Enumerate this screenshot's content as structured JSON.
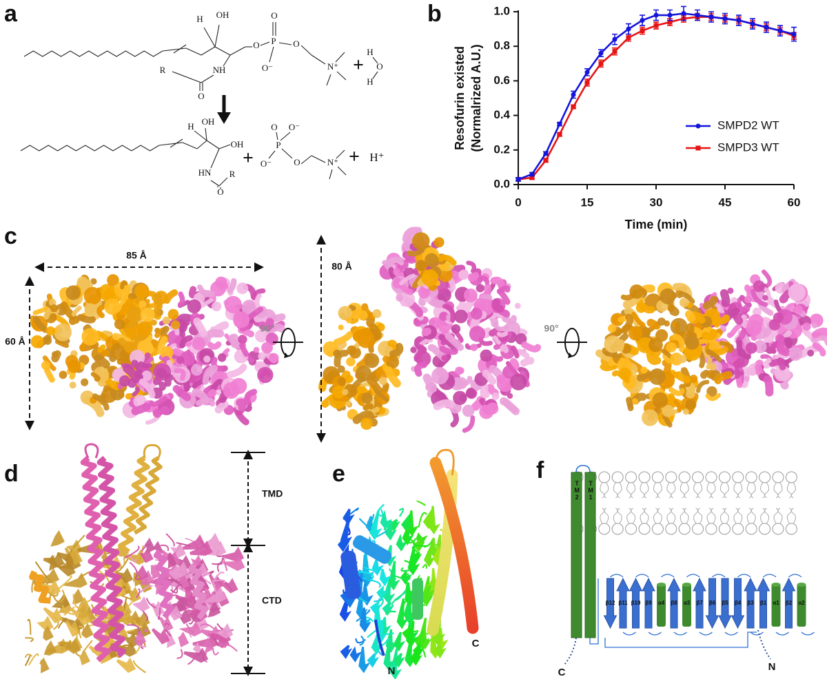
{
  "panel_labels": [
    "a",
    "b",
    "c",
    "d",
    "e",
    "f"
  ],
  "panel_a": {
    "reactant_labels": [
      "H",
      "OH",
      "NH",
      "R",
      "O",
      "O",
      "P",
      "O",
      "O⁻",
      "O",
      "N⁺",
      "+",
      "H",
      "O",
      "H"
    ],
    "product_labels": [
      "H",
      "OH",
      "OH",
      "+",
      "HN",
      "R",
      "O",
      "O",
      "O⁻",
      "P",
      "O⁻",
      "O",
      "N⁺",
      "+",
      "H⁺"
    ]
  },
  "chart_data": {
    "type": "line",
    "xlabel": "Time (min)",
    "ylabel": [
      "Resofurin existed",
      "(Normalrized A.U.)"
    ],
    "x": [
      0,
      3,
      6,
      9,
      12,
      15,
      18,
      21,
      24,
      27,
      30,
      33,
      36,
      39,
      42,
      45,
      48,
      51,
      54,
      57,
      60
    ],
    "series": [
      {
        "name": "SMPD2 WT",
        "color": "#1414dc",
        "marker": "circle",
        "values": [
          0.03,
          0.06,
          0.18,
          0.35,
          0.52,
          0.65,
          0.76,
          0.84,
          0.9,
          0.95,
          0.98,
          0.98,
          0.99,
          0.98,
          0.97,
          0.96,
          0.95,
          0.93,
          0.91,
          0.89,
          0.87
        ],
        "errors": [
          0.01,
          0.01,
          0.01,
          0.01,
          0.02,
          0.02,
          0.02,
          0.03,
          0.03,
          0.03,
          0.03,
          0.03,
          0.04,
          0.03,
          0.03,
          0.03,
          0.03,
          0.03,
          0.03,
          0.03,
          0.04
        ]
      },
      {
        "name": "SMPD3 WT",
        "color": "#e61414",
        "marker": "square",
        "values": [
          0.03,
          0.04,
          0.14,
          0.29,
          0.45,
          0.59,
          0.7,
          0.77,
          0.85,
          0.89,
          0.92,
          0.94,
          0.96,
          0.97,
          0.97,
          0.96,
          0.95,
          0.93,
          0.91,
          0.89,
          0.86
        ],
        "errors": [
          0.01,
          0.01,
          0.01,
          0.01,
          0.01,
          0.02,
          0.02,
          0.02,
          0.02,
          0.02,
          0.02,
          0.02,
          0.02,
          0.02,
          0.02,
          0.02,
          0.02,
          0.02,
          0.02,
          0.02,
          0.02
        ]
      }
    ],
    "xlim": [
      0,
      60
    ],
    "xticks": [
      0,
      15,
      30,
      45,
      60
    ],
    "ylim": [
      0,
      1.0
    ],
    "yticks": [
      {
        "value": 0,
        "label": "0.0"
      },
      0.2,
      0.4,
      0.6,
      0.8,
      {
        "value": 1.0,
        "label": "1.0"
      }
    ],
    "grid": false,
    "legend": "center right"
  },
  "panel_c": {
    "dimensions": [
      "85 Å",
      "80 Å",
      "60 Å"
    ],
    "rotations": [
      "90°",
      "90°"
    ]
  },
  "panel_d": {
    "domains": [
      "TMD",
      "CTD"
    ]
  },
  "panel_e": {
    "termini": [
      "N",
      "C"
    ]
  },
  "panel_f": {
    "helices": [
      "TM2",
      "TM1"
    ],
    "elements": [
      "β12",
      "β11",
      "β10",
      "β9",
      "α4",
      "β8",
      "α3",
      "β7",
      "β6",
      "β5",
      "β4",
      "β3",
      "β1",
      "α1",
      "β2",
      "α2"
    ],
    "termini": [
      "N",
      "C"
    ]
  }
}
